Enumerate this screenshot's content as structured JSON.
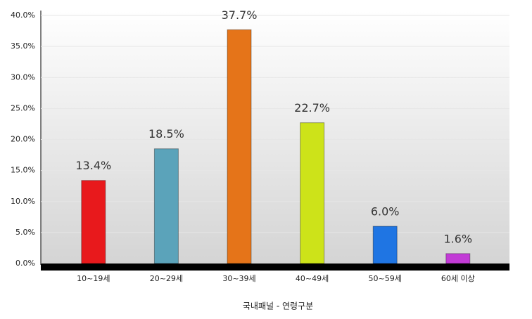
{
  "chart_data": {
    "type": "bar",
    "x_label": "국내패널 - 연령구분",
    "categories": [
      "10~19세",
      "20~29세",
      "30~39세",
      "40~49세",
      "50~59세",
      "60세 이상"
    ],
    "values": [
      13.4,
      18.5,
      37.7,
      22.7,
      6.0,
      1.6
    ],
    "value_labels": [
      "13.4%",
      "18.5%",
      "37.7%",
      "22.7%",
      "6.0%",
      "1.6%"
    ],
    "colors": [
      "#e8191c",
      "#5ba3ba",
      "#e57419",
      "#cde319",
      "#1f75e3",
      "#c23bd6"
    ],
    "ylim": [
      0,
      40
    ],
    "yticks": [
      {
        "value": 0,
        "label": "0.0%"
      },
      {
        "value": 5,
        "label": "5.0%"
      },
      {
        "value": 10,
        "label": "10.0%"
      },
      {
        "value": 15,
        "label": "15.0%"
      },
      {
        "value": 20,
        "label": "20.0%"
      },
      {
        "value": 25,
        "label": "25.0%"
      },
      {
        "value": 30,
        "label": "30.0%"
      },
      {
        "value": 35,
        "label": "35.0%"
      },
      {
        "value": 40,
        "label": "40.0%"
      }
    ],
    "grid": true
  }
}
